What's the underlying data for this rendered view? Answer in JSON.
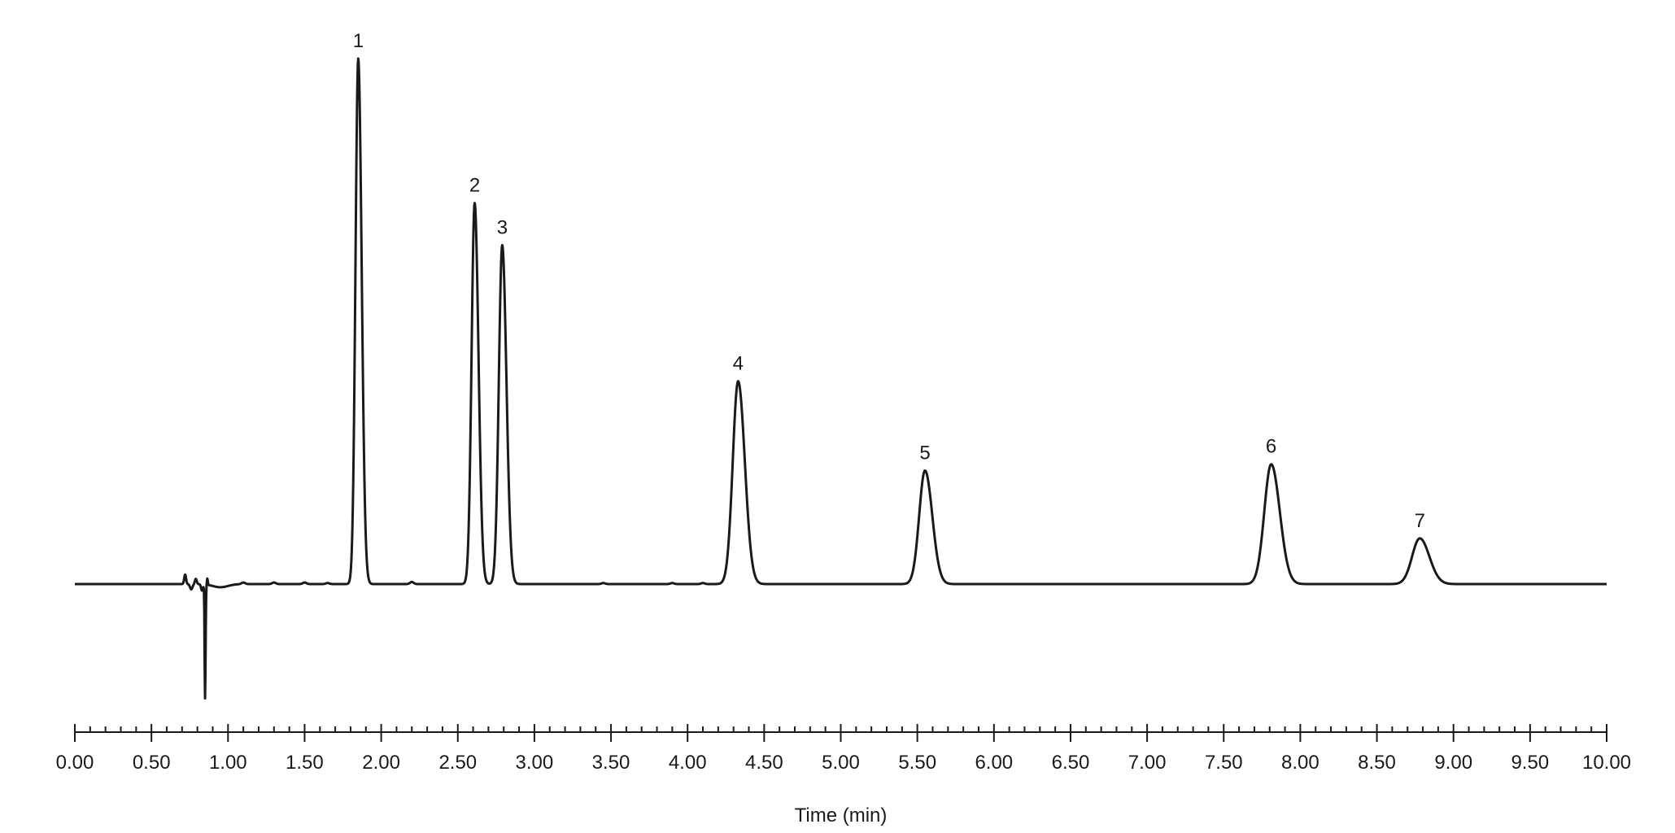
{
  "chart_data": {
    "type": "line",
    "xlabel": "Time (min)",
    "ylabel": "",
    "xlim": [
      0,
      10
    ],
    "x_ticks": [
      "0.00",
      "0.50",
      "1.00",
      "1.50",
      "2.00",
      "2.50",
      "3.00",
      "3.50",
      "4.00",
      "4.50",
      "5.00",
      "5.50",
      "6.00",
      "6.50",
      "7.00",
      "7.50",
      "8.00",
      "8.50",
      "9.00",
      "9.50",
      "10.00"
    ],
    "x_minor_step": 0.1,
    "y_axis_visible": false,
    "grid": false,
    "series": [
      {
        "peaks": [
          {
            "label": "1",
            "x": 1.85,
            "height": 1.0
          },
          {
            "label": "2",
            "x": 2.61,
            "height": 0.725
          },
          {
            "label": "3",
            "x": 2.79,
            "height": 0.645
          },
          {
            "label": "4",
            "x": 4.33,
            "height": 0.386
          },
          {
            "label": "5",
            "x": 5.55,
            "height": 0.216
          },
          {
            "label": "6",
            "x": 7.81,
            "height": 0.228
          },
          {
            "label": "7",
            "x": 8.78,
            "height": 0.087
          }
        ],
        "baseline_disturbance": {
          "x": 0.85,
          "min": -0.218
        }
      }
    ]
  }
}
